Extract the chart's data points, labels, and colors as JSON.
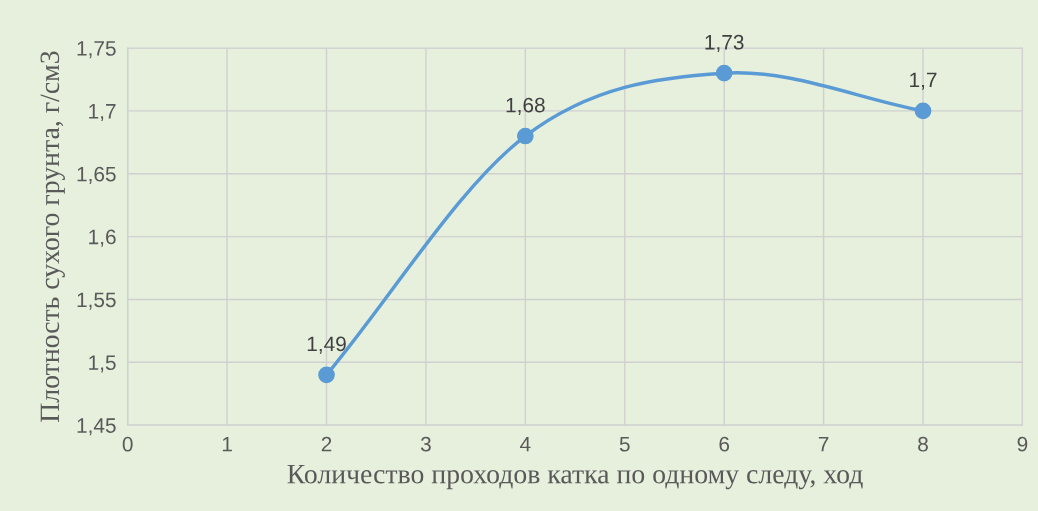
{
  "chart_data": {
    "type": "line",
    "xlabel": "Количество проходов катка по одному следу, ход",
    "ylabel": "Плотность сухого грунта, г/см3",
    "x": [
      2,
      4,
      6,
      8
    ],
    "series": [
      {
        "color": "#5b9bd5",
        "values": [
          1.49,
          1.68,
          1.73,
          1.7
        ],
        "value_labels": [
          "1,49",
          "1,68",
          "1,73",
          "1,7"
        ]
      }
    ],
    "xlim": [
      0,
      9
    ],
    "xticks": [
      0,
      1,
      2,
      3,
      4,
      5,
      6,
      7,
      8,
      9
    ],
    "ylim": [
      1.45,
      1.75
    ],
    "yticks": [
      {
        "value": 1.45,
        "label": "1,45"
      },
      {
        "value": 1.5,
        "label": "1,5"
      },
      {
        "value": 1.55,
        "label": "1,55"
      },
      {
        "value": 1.6,
        "label": "1,6"
      },
      {
        "value": 1.65,
        "label": "1,65"
      },
      {
        "value": 1.7,
        "label": "1,7"
      },
      {
        "value": 1.75,
        "label": "1,75"
      }
    ],
    "grid": true,
    "marker": "circle",
    "line_style": "solid",
    "legend": false
  }
}
